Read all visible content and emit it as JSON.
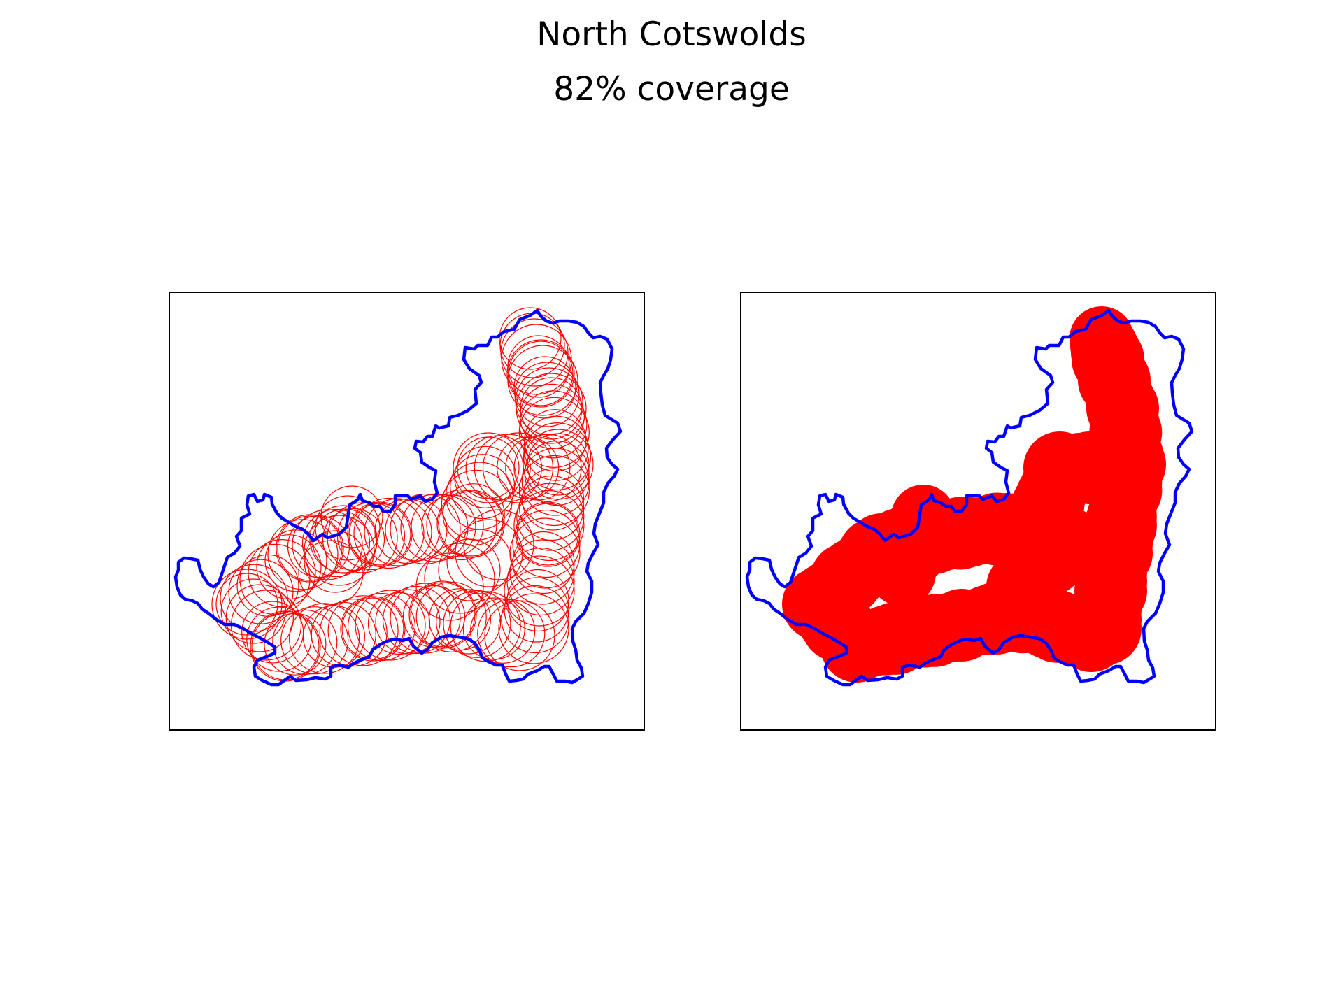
{
  "title": "North Cotswolds",
  "subtitle": "82% coverage",
  "colors": {
    "boundary": "#0000ff",
    "coverage": "#ff0000",
    "frame": "#000000",
    "background": "#ffffff"
  },
  "panels": [
    {
      "name": "coverage-circles-outline",
      "style": "outline"
    },
    {
      "name": "coverage-area-filled",
      "style": "filled"
    }
  ]
}
